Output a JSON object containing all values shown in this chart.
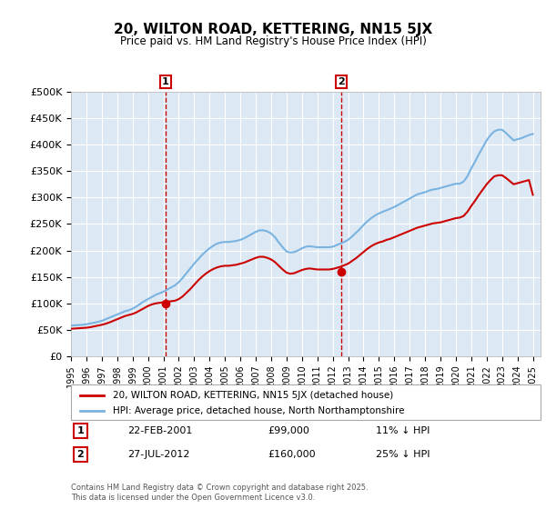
{
  "title": "20, WILTON ROAD, KETTERING, NN15 5JX",
  "subtitle": "Price paid vs. HM Land Registry's House Price Index (HPI)",
  "ylabel": "",
  "ylim": [
    0,
    500000
  ],
  "yticks": [
    0,
    50000,
    100000,
    150000,
    200000,
    250000,
    300000,
    350000,
    400000,
    450000,
    500000
  ],
  "ytick_labels": [
    "£0",
    "£50K",
    "£100K",
    "£150K",
    "£200K",
    "£250K",
    "£300K",
    "£350K",
    "£400K",
    "£450K",
    "£500K"
  ],
  "xlim_start": 1995.0,
  "xlim_end": 2025.5,
  "background_color": "#dce9f5",
  "plot_background": "#dce9f5",
  "grid_color": "#ffffff",
  "line_color_hpi": "#7ab3e0",
  "line_color_price": "#cc0000",
  "marker1_x": 2001.14,
  "marker1_y": 99000,
  "marker2_x": 2012.57,
  "marker2_y": 160000,
  "legend_line1": "20, WILTON ROAD, KETTERING, NN15 5JX (detached house)",
  "legend_line2": "HPI: Average price, detached house, North Northamptonshire",
  "annotation1": [
    "1",
    "22-FEB-2001",
    "£99,000",
    "11% ↓ HPI"
  ],
  "annotation2": [
    "2",
    "27-JUL-2012",
    "£160,000",
    "25% ↓ HPI"
  ],
  "footnote": "Contains HM Land Registry data © Crown copyright and database right 2025.\nThis data is licensed under the Open Government Licence v3.0.",
  "hpi_data_x": [
    1995.0,
    1995.25,
    1995.5,
    1995.75,
    1996.0,
    1996.25,
    1996.5,
    1996.75,
    1997.0,
    1997.25,
    1997.5,
    1997.75,
    1998.0,
    1998.25,
    1998.5,
    1998.75,
    1999.0,
    1999.25,
    1999.5,
    1999.75,
    2000.0,
    2000.25,
    2000.5,
    2000.75,
    2001.0,
    2001.25,
    2001.5,
    2001.75,
    2002.0,
    2002.25,
    2002.5,
    2002.75,
    2003.0,
    2003.25,
    2003.5,
    2003.75,
    2004.0,
    2004.25,
    2004.5,
    2004.75,
    2005.0,
    2005.25,
    2005.5,
    2005.75,
    2006.0,
    2006.25,
    2006.5,
    2006.75,
    2007.0,
    2007.25,
    2007.5,
    2007.75,
    2008.0,
    2008.25,
    2008.5,
    2008.75,
    2009.0,
    2009.25,
    2009.5,
    2009.75,
    2010.0,
    2010.25,
    2010.5,
    2010.75,
    2011.0,
    2011.25,
    2011.5,
    2011.75,
    2012.0,
    2012.25,
    2012.5,
    2012.75,
    2013.0,
    2013.25,
    2013.5,
    2013.75,
    2014.0,
    2014.25,
    2014.5,
    2014.75,
    2015.0,
    2015.25,
    2015.5,
    2015.75,
    2016.0,
    2016.25,
    2016.5,
    2016.75,
    2017.0,
    2017.25,
    2017.5,
    2017.75,
    2018.0,
    2018.25,
    2018.5,
    2018.75,
    2019.0,
    2019.25,
    2019.5,
    2019.75,
    2020.0,
    2020.25,
    2020.5,
    2020.75,
    2021.0,
    2021.25,
    2021.5,
    2021.75,
    2022.0,
    2022.25,
    2022.5,
    2022.75,
    2023.0,
    2023.25,
    2023.5,
    2023.75,
    2024.0,
    2024.25,
    2024.5,
    2024.75,
    2025.0
  ],
  "hpi_data_y": [
    58000,
    58500,
    59000,
    59500,
    60500,
    62000,
    63500,
    65000,
    67000,
    70000,
    73000,
    76000,
    79000,
    82000,
    85000,
    87000,
    90000,
    94000,
    99000,
    104000,
    108000,
    112000,
    116000,
    119000,
    122000,
    126000,
    130000,
    134000,
    140000,
    148000,
    157000,
    166000,
    175000,
    183000,
    191000,
    198000,
    204000,
    209000,
    213000,
    215000,
    216000,
    216000,
    217000,
    218000,
    220000,
    223000,
    227000,
    231000,
    235000,
    238000,
    238000,
    236000,
    232000,
    225000,
    215000,
    206000,
    198000,
    196000,
    197000,
    200000,
    204000,
    207000,
    208000,
    207000,
    206000,
    206000,
    206000,
    206000,
    207000,
    210000,
    213000,
    216000,
    220000,
    226000,
    233000,
    240000,
    248000,
    255000,
    261000,
    266000,
    270000,
    273000,
    276000,
    279000,
    282000,
    286000,
    290000,
    294000,
    298000,
    302000,
    306000,
    308000,
    310000,
    313000,
    315000,
    316000,
    318000,
    320000,
    322000,
    324000,
    326000,
    326000,
    330000,
    340000,
    355000,
    368000,
    382000,
    395000,
    408000,
    418000,
    425000,
    428000,
    428000,
    422000,
    415000,
    408000,
    410000,
    412000,
    415000,
    418000,
    420000
  ],
  "price_data_x": [
    1995.0,
    1995.25,
    1995.5,
    1995.75,
    1996.0,
    1996.25,
    1996.5,
    1996.75,
    1997.0,
    1997.25,
    1997.5,
    1997.75,
    1998.0,
    1998.25,
    1998.5,
    1998.75,
    1999.0,
    1999.25,
    1999.5,
    1999.75,
    2000.0,
    2000.25,
    2000.5,
    2000.75,
    2001.0,
    2001.25,
    2001.5,
    2001.75,
    2002.0,
    2002.25,
    2002.5,
    2002.75,
    2003.0,
    2003.25,
    2003.5,
    2003.75,
    2004.0,
    2004.25,
    2004.5,
    2004.75,
    2005.0,
    2005.25,
    2005.5,
    2005.75,
    2006.0,
    2006.25,
    2006.5,
    2006.75,
    2007.0,
    2007.25,
    2007.5,
    2007.75,
    2008.0,
    2008.25,
    2008.5,
    2008.75,
    2009.0,
    2009.25,
    2009.5,
    2009.75,
    2010.0,
    2010.25,
    2010.5,
    2010.75,
    2011.0,
    2011.25,
    2011.5,
    2011.75,
    2012.0,
    2012.25,
    2012.5,
    2012.75,
    2013.0,
    2013.25,
    2013.5,
    2013.75,
    2014.0,
    2014.25,
    2014.5,
    2014.75,
    2015.0,
    2015.25,
    2015.5,
    2015.75,
    2016.0,
    2016.25,
    2016.5,
    2016.75,
    2017.0,
    2017.25,
    2017.5,
    2017.75,
    2018.0,
    2018.25,
    2018.5,
    2018.75,
    2019.0,
    2019.25,
    2019.5,
    2019.75,
    2020.0,
    2020.25,
    2020.5,
    2020.75,
    2021.0,
    2021.25,
    2021.5,
    2021.75,
    2022.0,
    2022.25,
    2022.5,
    2022.75,
    2023.0,
    2023.25,
    2023.5,
    2023.75,
    2024.0,
    2024.25,
    2024.5,
    2024.75,
    2025.0
  ],
  "price_data_y": [
    52000,
    52500,
    53000,
    53500,
    54000,
    55000,
    56500,
    58000,
    59500,
    61500,
    64000,
    67000,
    70000,
    73000,
    76000,
    78000,
    80000,
    83000,
    87000,
    91000,
    95000,
    98000,
    100000,
    101000,
    102000,
    103000,
    104000,
    105000,
    108000,
    113000,
    120000,
    127000,
    135000,
    143000,
    150000,
    156000,
    161000,
    165000,
    168000,
    170000,
    171000,
    171000,
    172000,
    173000,
    175000,
    177000,
    180000,
    183000,
    186000,
    188000,
    188000,
    186000,
    183000,
    178000,
    171000,
    164000,
    158000,
    156000,
    157000,
    160000,
    163000,
    165000,
    166000,
    165000,
    164000,
    164000,
    164000,
    164000,
    165000,
    167000,
    169000,
    172000,
    175000,
    180000,
    185000,
    191000,
    197000,
    203000,
    208000,
    212000,
    215000,
    217000,
    220000,
    222000,
    225000,
    228000,
    231000,
    234000,
    237000,
    240000,
    243000,
    245000,
    247000,
    249000,
    251000,
    252000,
    253000,
    255000,
    257000,
    259000,
    261000,
    262000,
    265000,
    273000,
    284000,
    294000,
    305000,
    315000,
    325000,
    333000,
    340000,
    342000,
    342000,
    337000,
    331000,
    325000,
    327000,
    329000,
    331000,
    333000,
    305000
  ]
}
